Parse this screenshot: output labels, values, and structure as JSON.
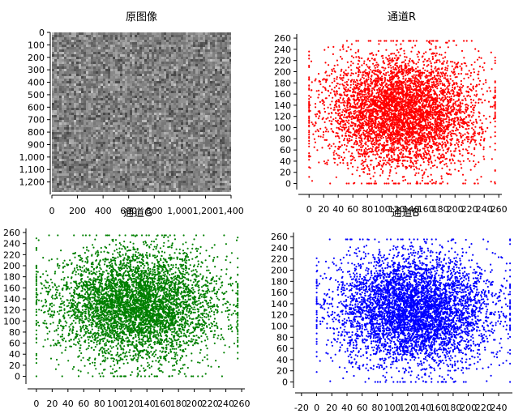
{
  "chart_data": [
    {
      "type": "heatmap",
      "title": "原图像",
      "xlim": [
        0,
        1400
      ],
      "ylim": [
        1300,
        0
      ],
      "xticks": [
        0,
        200,
        400,
        600,
        800,
        1000,
        1200,
        1400
      ],
      "xtick_labels": [
        "0",
        "200",
        "400",
        "600",
        "800",
        "1,000",
        "1,200",
        "1,400"
      ],
      "yticks": [
        0,
        100,
        200,
        300,
        400,
        500,
        600,
        700,
        800,
        900,
        1000,
        1100,
        1200
      ],
      "ytick_labels": [
        "0",
        "100",
        "200",
        "300",
        "400",
        "500",
        "600",
        "700",
        "800",
        "900",
        "1,000",
        "1,100",
        "1,200"
      ],
      "image_extent": [
        0,
        1400,
        0,
        1280
      ],
      "image_mean_gray": 128,
      "description": ""
    },
    {
      "type": "scatter",
      "title": "通道R",
      "color": "#ff0000",
      "xlim": [
        -8,
        262
      ],
      "ylim": [
        -5,
        263
      ],
      "xticks": [
        0,
        20,
        40,
        60,
        80,
        100,
        120,
        140,
        160,
        180,
        200,
        220,
        240,
        260
      ],
      "yticks": [
        0,
        20,
        40,
        60,
        80,
        100,
        120,
        140,
        160,
        180,
        200,
        220,
        240,
        260
      ],
      "distribution": {
        "x_center": 128,
        "y_center": 128,
        "x_min": 0,
        "x_max": 255,
        "y_min": 0,
        "y_max": 255
      }
    },
    {
      "type": "scatter",
      "title": "通道G",
      "color": "#008000",
      "xlim": [
        -5,
        262
      ],
      "ylim": [
        -8,
        263
      ],
      "xticks": [
        0,
        20,
        40,
        60,
        80,
        100,
        120,
        140,
        160,
        180,
        200,
        220,
        240,
        260
      ],
      "yticks": [
        0,
        20,
        40,
        60,
        80,
        100,
        120,
        140,
        160,
        180,
        200,
        220,
        240,
        260
      ],
      "distribution": {
        "x_center": 128,
        "y_center": 128,
        "x_min": 0,
        "x_max": 255,
        "y_min": 0,
        "y_max": 255
      }
    },
    {
      "type": "scatter",
      "title": "通道B",
      "color": "#0000ff",
      "xlim": [
        -22,
        256
      ],
      "ylim": [
        -5,
        263
      ],
      "xticks": [
        -20,
        0,
        20,
        40,
        60,
        80,
        100,
        120,
        140,
        160,
        180,
        200,
        220,
        240
      ],
      "yticks": [
        0,
        20,
        40,
        60,
        80,
        100,
        120,
        140,
        160,
        180,
        200,
        220,
        240,
        260
      ],
      "distribution": {
        "x_center": 128,
        "y_center": 128,
        "x_min": 0,
        "x_max": 255,
        "y_min": 0,
        "y_max": 255
      }
    }
  ]
}
